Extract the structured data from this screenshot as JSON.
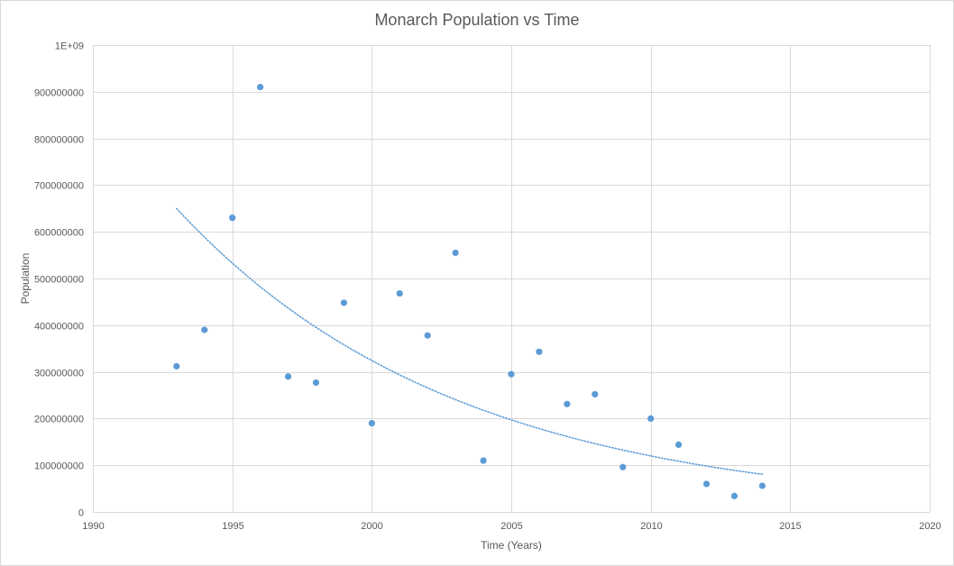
{
  "chart_data": {
    "type": "scatter",
    "title": "Monarch Population vs Time",
    "xlabel": "Time (Years)",
    "ylabel": "Population",
    "xlim": [
      1990,
      2020
    ],
    "ylim": [
      0,
      1000000000
    ],
    "x_ticks": [
      1990,
      1995,
      2000,
      2005,
      2010,
      2015,
      2020
    ],
    "x_tick_labels": [
      "1990",
      "1995",
      "2000",
      "2005",
      "2010",
      "2015",
      "2020"
    ],
    "y_ticks": [
      0,
      100000000,
      200000000,
      300000000,
      400000000,
      500000000,
      600000000,
      700000000,
      800000000,
      900000000,
      1000000000
    ],
    "y_tick_labels": [
      "0",
      "100000000",
      "200000000",
      "300000000",
      "400000000",
      "500000000",
      "600000000",
      "700000000",
      "800000000",
      "900000000",
      "1E+09"
    ],
    "grid": true,
    "marker_color": "#5b9bd5",
    "series": [
      {
        "x": [
          1993,
          1994,
          1995,
          1996,
          1997,
          1998,
          1999,
          2000,
          2001,
          2002,
          2003,
          2004,
          2005,
          2006,
          2007,
          2008,
          2009,
          2010,
          2011,
          2012,
          2013,
          2014
        ],
        "values": [
          312000000,
          390000000,
          630000000,
          910000000,
          290000000,
          277000000,
          448000000,
          190000000,
          468000000,
          378000000,
          555000000,
          110000000,
          295000000,
          343000000,
          231000000,
          252000000,
          96000000,
          200000000,
          144000000,
          60000000,
          34000000,
          56000000
        ]
      }
    ],
    "trendline": {
      "type": "exponential",
      "style": "dotted",
      "x_range": [
        1993,
        2014
      ],
      "a": 650000000,
      "b": -0.0994
    }
  }
}
